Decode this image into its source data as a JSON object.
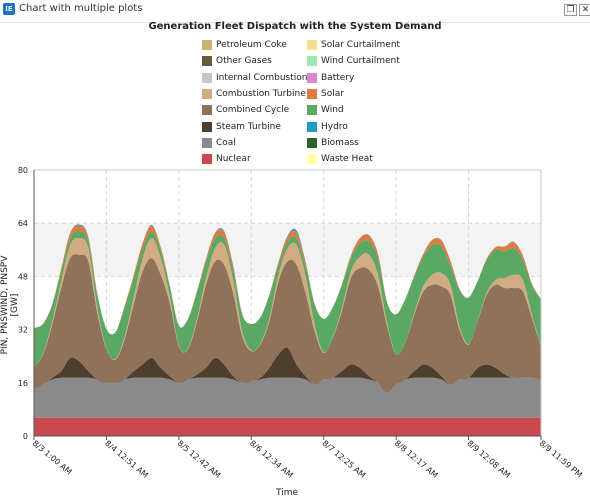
{
  "window": {
    "icon_text": "IE",
    "title": "Chart with multiple plots",
    "restore_symbol": "❐",
    "close_symbol": "✕"
  },
  "chart_data": {
    "type": "area",
    "stacked": true,
    "title": "Generation Fleet Dispatch with the System Demand",
    "xlabel": "Time",
    "ylabel": "PIN, PNSWIND, PNSPV [GW]",
    "ylim": [
      0,
      80
    ],
    "yticks": [
      "0",
      "16",
      "32",
      "48",
      "64",
      "80"
    ],
    "x_ticks": [
      "8/3 1:00 AM",
      "8/4 12:51 AM",
      "8/5 12:42 AM",
      "8/6 12:34 AM",
      "8/7 12:25 AM",
      "8/8 12:17 AM",
      "8/9 12:08 AM",
      "8/9 11:59 PM"
    ],
    "grid": true,
    "legend_position": "top",
    "legend": [
      {
        "name": "Petroleum Coke",
        "color": "#c8b46e"
      },
      {
        "name": "Other Gases",
        "color": "#6b5a3a"
      },
      {
        "name": "Internal Combustion",
        "color": "#c6c6c6"
      },
      {
        "name": "Combustion Turbine",
        "color": "#d2ab82"
      },
      {
        "name": "Combined Cycle",
        "color": "#8e7259"
      },
      {
        "name": "Steam Turbine",
        "color": "#4f3e2e"
      },
      {
        "name": "Coal",
        "color": "#8a8a8a"
      },
      {
        "name": "Nuclear",
        "color": "#c9494f"
      },
      {
        "name": "Solar Curtailment",
        "color": "#f3e08c"
      },
      {
        "name": "Wind Curtailment",
        "color": "#9fe8b0"
      },
      {
        "name": "Battery",
        "color": "#de86c6"
      },
      {
        "name": "Solar",
        "color": "#de7a44"
      },
      {
        "name": "Wind",
        "color": "#5aa864"
      },
      {
        "name": "Hydro",
        "color": "#1f9bc6"
      },
      {
        "name": "Biomass",
        "color": "#2e6030"
      },
      {
        "name": "Waste Heat",
        "color": "#ffffa8"
      }
    ],
    "time_hours": [
      0,
      3,
      6,
      9,
      12,
      15,
      18,
      21,
      24,
      27,
      30,
      33,
      36,
      39,
      42,
      45,
      48,
      51,
      54,
      57,
      60,
      63,
      66,
      69,
      72,
      75,
      78,
      81,
      84,
      87,
      90,
      93,
      96,
      99,
      102,
      105,
      108,
      111,
      114,
      117,
      120,
      123,
      126,
      129,
      132,
      135,
      138,
      141,
      144,
      147,
      150,
      153,
      156,
      159,
      162,
      165,
      168
    ],
    "series": [
      {
        "name": "Nuclear",
        "values": [
          5.5,
          5.5,
          5.5,
          5.5,
          5.5,
          5.5,
          5.5,
          5.5,
          5.5,
          5.5,
          5.5,
          5.5,
          5.5,
          5.5,
          5.5,
          5.5,
          5.5,
          5.5,
          5.5,
          5.5,
          5.5,
          5.5,
          5.5,
          5.5,
          5.5,
          5.5,
          5.5,
          5.5,
          5.5,
          5.5,
          5.5,
          5.5,
          5.5,
          5.5,
          5.5,
          5.5,
          5.5,
          5.5,
          5.5,
          5.5,
          5.5,
          5.5,
          5.5,
          5.5,
          5.5,
          5.5,
          5.5,
          5.5,
          5.5,
          5.5,
          5.5,
          5.5,
          5.5,
          5.5,
          5.5,
          5.5,
          5.5
        ]
      },
      {
        "name": "Coal",
        "values": [
          8.5,
          10,
          11.5,
          12,
          12,
          12,
          12,
          11.5,
          10.5,
          10.5,
          11.5,
          12,
          12,
          12,
          12,
          11.5,
          10.5,
          11.5,
          12,
          12,
          12,
          12,
          11.5,
          10.5,
          11,
          11.5,
          12,
          12,
          12,
          12,
          11.5,
          10,
          11.5,
          12,
          12,
          12,
          12,
          11.5,
          10.5,
          7.5,
          10,
          11.5,
          12,
          12,
          12,
          11.5,
          10,
          11.5,
          12,
          12,
          12,
          12,
          12,
          12,
          12,
          12,
          11.5
        ]
      },
      {
        "name": "Steam Turbine",
        "values": [
          0,
          0,
          0.5,
          2,
          6,
          5,
          2,
          0,
          0,
          0,
          0,
          2,
          4,
          6,
          3,
          1,
          0,
          0,
          1,
          3,
          6,
          4,
          1,
          0,
          0,
          0.5,
          3,
          7,
          9,
          4,
          1,
          0,
          0,
          0,
          2,
          4,
          3,
          1,
          0,
          0,
          0,
          0,
          2,
          4,
          3,
          1,
          0,
          0,
          0,
          3,
          4,
          3,
          1,
          0,
          0,
          0,
          0
        ]
      },
      {
        "name": "Combined Cycle",
        "values": [
          6.5,
          9,
          16,
          25,
          30,
          32,
          33,
          20,
          10,
          7,
          12,
          20,
          28,
          30,
          28,
          22,
          11,
          9,
          16,
          25,
          29,
          30,
          25,
          14,
          9,
          10,
          14,
          22,
          26,
          30,
          25,
          16,
          8,
          12,
          18,
          26,
          30,
          32,
          29,
          20,
          9,
          11,
          17,
          22,
          25,
          27,
          27,
          15,
          10,
          14,
          21,
          25,
          26,
          27,
          26,
          18,
          10
        ]
      },
      {
        "name": "Combustion Turbine",
        "values": [
          0,
          0.2,
          0.8,
          2,
          4,
          5,
          4,
          1.5,
          0.2,
          0.2,
          0.8,
          2,
          4,
          6,
          5,
          2,
          0.2,
          0.2,
          0.8,
          2,
          4,
          6,
          4,
          1.5,
          0.2,
          0.2,
          0.8,
          2,
          4,
          6,
          5,
          2,
          0.2,
          0.2,
          0.8,
          2,
          3.5,
          4.5,
          3.5,
          1,
          0.1,
          0.1,
          0.5,
          1.5,
          3,
          4,
          3,
          1,
          0.1,
          0.1,
          0.5,
          1.5,
          3,
          4,
          3.5,
          1,
          0.1
        ]
      },
      {
        "name": "Wind",
        "values": [
          12,
          9,
          5,
          3,
          2,
          2,
          2,
          4,
          6,
          8,
          9,
          6,
          3,
          2,
          2,
          3,
          6,
          9,
          8,
          5,
          3,
          2,
          3,
          5,
          8,
          8,
          7,
          3,
          2,
          2,
          3,
          6,
          10,
          9,
          7,
          4,
          4,
          4,
          5,
          6,
          12,
          13,
          11,
          9,
          9,
          8,
          6,
          11,
          14,
          12,
          10,
          9,
          8,
          8,
          6,
          9,
          14
        ]
      },
      {
        "name": "Solar",
        "values": [
          0,
          0.1,
          0.3,
          0.8,
          1.5,
          1.8,
          1.2,
          0.3,
          0,
          0,
          0.3,
          0.8,
          1.5,
          1.8,
          1.2,
          0.3,
          0,
          0,
          0.3,
          0.8,
          1.5,
          1.8,
          1.2,
          0.3,
          0,
          0,
          0.3,
          0.8,
          1.5,
          1.8,
          1.2,
          0.3,
          0,
          0,
          0.3,
          0.8,
          1.5,
          1.8,
          1.2,
          0.3,
          0,
          0,
          0.3,
          0.8,
          1.5,
          1.8,
          1.2,
          0.3,
          0,
          0,
          0.3,
          0.8,
          1.5,
          1.8,
          1.2,
          0.3,
          0
        ]
      },
      {
        "name": "Hydro",
        "values": [
          0,
          0,
          0,
          0,
          0,
          0.3,
          0.2,
          0,
          0,
          0,
          0,
          0,
          0,
          0.2,
          0.1,
          0,
          0,
          0,
          0,
          0,
          0.1,
          0.3,
          0.1,
          0,
          0,
          0,
          0,
          0,
          0.2,
          0.5,
          0.2,
          0,
          0,
          0,
          0,
          0,
          0,
          0.1,
          0,
          0,
          0,
          0,
          0,
          0,
          0,
          0.1,
          0,
          0,
          0,
          0,
          0,
          0,
          0,
          0.1,
          0,
          0,
          0
        ]
      }
    ]
  }
}
